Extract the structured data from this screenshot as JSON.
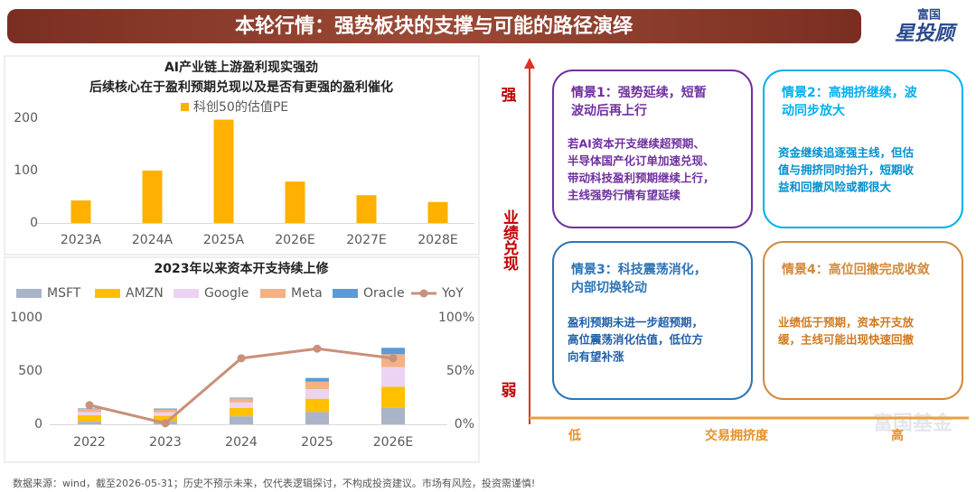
{
  "header": {
    "title": "本轮行情：强势板块的支撑与可能的路径演绎",
    "logo": [
      "富国",
      "星投顾"
    ]
  },
  "chart_data": [
    {
      "type": "bar",
      "title": [
        "AI产业链上游盈利现实强劲",
        "后续核心在于盈利预期兑现以及是否有更强的盈利催化"
      ],
      "categories": [
        "2023A",
        "2024A",
        "2025A",
        "2026E",
        "2027E",
        "2028E"
      ],
      "series": [
        {
          "name": "科创50的估值PE",
          "color": "#ffb000",
          "values": [
            43,
            100,
            197,
            79,
            53,
            40
          ]
        }
      ],
      "ylim": [
        0,
        210
      ],
      "yticks": [
        0,
        100,
        200
      ],
      "grid": false
    },
    {
      "type": "stacked-bar-line",
      "title": [
        "2023年以来资本开支持续上修"
      ],
      "categories": [
        "2022",
        "2023",
        "2024",
        "2025",
        "2026E"
      ],
      "series": [
        {
          "name": "MSFT",
          "color": "#aab4c8",
          "values": [
            25,
            30,
            75,
            115,
            153
          ]
        },
        {
          "name": "AMZN",
          "color": "#ffc000",
          "values": [
            60,
            50,
            80,
            125,
            200
          ]
        },
        {
          "name": "Google",
          "color": "#ecd3f3",
          "values": [
            30,
            32,
            50,
            90,
            185
          ]
        },
        {
          "name": "Meta",
          "color": "#f4b183",
          "values": [
            30,
            28,
            38,
            70,
            120
          ]
        },
        {
          "name": "Oracle",
          "color": "#5b9bd5",
          "values": [
            5,
            8,
            7,
            35,
            60
          ]
        },
        {
          "name": "YoY",
          "color": "#c9907a",
          "axis": "y2",
          "values": [
            18,
            1,
            62,
            71,
            62
          ]
        }
      ],
      "ylim": [
        0,
        1000
      ],
      "yticks": [
        0,
        500,
        1000
      ],
      "y2lim": [
        0,
        100
      ],
      "y2ticks": [
        {
          "value": 0,
          "label": "0%"
        },
        {
          "value": 50,
          "label": "50%"
        },
        {
          "value": 100,
          "label": "100%"
        }
      ],
      "grid": false
    }
  ],
  "quadrant": {
    "y_axis": {
      "high": "强",
      "label": "业绩兑现",
      "low": "弱"
    },
    "x_axis": {
      "low": "低",
      "label": "交易拥挤度",
      "high": "高"
    },
    "boxes": [
      {
        "title": [
          "情景1：强势延续，短暂",
          "波动后再上行"
        ],
        "body": [
          "若AI资本开支继续超预期、",
          "半导体国产化订单加速兑现、",
          "带动科技盈利预期继续上行，",
          "主线强势行情有望延续"
        ]
      },
      {
        "title": [
          "情景2：高拥挤继续，波",
          "动同步放大"
        ],
        "body": [
          "资金继续追逐强主线，但估",
          "值与拥挤同时抬升，短期收",
          "益和回撤风险或都很大"
        ]
      },
      {
        "title": [
          "情景3：科技震荡消化，",
          "内部切换轮动"
        ],
        "body": [
          "盈利预期未进一步超预期，",
          "高位震荡消化估值，低位方",
          "向有望补涨"
        ]
      },
      {
        "title": [
          "情景4：高位回撤完成收敛"
        ],
        "body": [
          "业绩低于预期，资本开支放",
          "缓，主线可能出现快速回撤"
        ]
      }
    ],
    "watermark": "富国基金"
  },
  "footer": "数据来源：wind，截至2026-05-31；历史不预示未来，仅代表逻辑探讨，不构成投资建议。市场有风险，投资需谨慎!"
}
